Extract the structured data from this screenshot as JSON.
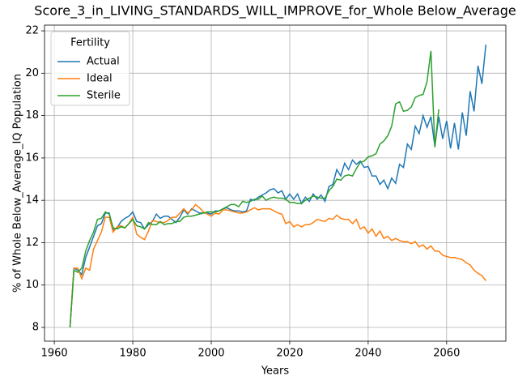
{
  "chart_data": {
    "type": "line",
    "title": "Score_3_in_LIVING_STANDARDS_WILL_IMPROVE_for_Whole Below_Average",
    "xlabel": "Years",
    "ylabel": "% of Whole Below_Average_IQ Population",
    "legend_title": "Fertility",
    "legend": "upper left",
    "grid": true,
    "xlim": [
      1957.5,
      2075.1
    ],
    "ylim": [
      7.35,
      22.27
    ],
    "xticks": [
      1960,
      1980,
      2000,
      2020,
      2040,
      2060
    ],
    "yticks": [
      8,
      10,
      12,
      14,
      16,
      18,
      20,
      22
    ],
    "x": [
      1964,
      1965,
      1966,
      1967,
      1968,
      1969,
      1970,
      1971,
      1972,
      1973,
      1974,
      1975,
      1976,
      1977,
      1978,
      1979,
      1980,
      1981,
      1982,
      1983,
      1984,
      1985,
      1986,
      1987,
      1988,
      1989,
      1990,
      1991,
      1992,
      1993,
      1994,
      1995,
      1996,
      1997,
      1998,
      1999,
      2000,
      2001,
      2002,
      2003,
      2004,
      2005,
      2006,
      2007,
      2008,
      2009,
      2010,
      2011,
      2012,
      2013,
      2014,
      2015,
      2016,
      2017,
      2018,
      2019,
      2020,
      2021,
      2022,
      2023,
      2024,
      2025,
      2026,
      2027,
      2028,
      2029,
      2030,
      2031,
      2032,
      2033,
      2034,
      2035,
      2036,
      2037,
      2038,
      2039,
      2040,
      2041,
      2042,
      2043,
      2044,
      2045,
      2046,
      2047,
      2048,
      2049,
      2050,
      2051,
      2052,
      2053,
      2054,
      2055,
      2056,
      2057,
      2058,
      2059,
      2060,
      2061,
      2062,
      2063,
      2064,
      2065,
      2066,
      2067,
      2068,
      2069,
      2070
    ],
    "series": [
      {
        "name": "Actual",
        "color": "#1f77b4",
        "values": [
          8.0,
          10.8,
          10.7,
          10.5,
          11.3,
          11.8,
          12.3,
          12.8,
          12.9,
          13.4,
          13.4,
          12.6,
          12.7,
          13.0,
          13.15,
          13.25,
          13.45,
          13.0,
          12.95,
          12.65,
          12.85,
          13.0,
          13.35,
          13.15,
          13.25,
          13.25,
          13.1,
          12.95,
          13.2,
          13.55,
          13.35,
          13.6,
          13.5,
          13.4,
          13.4,
          13.4,
          13.35,
          13.5,
          13.5,
          13.6,
          13.65,
          13.55,
          13.5,
          13.5,
          13.45,
          13.5,
          14.05,
          14.0,
          14.15,
          14.25,
          14.35,
          14.5,
          14.55,
          14.35,
          14.45,
          14.05,
          14.3,
          14.05,
          14.3,
          13.85,
          14.15,
          13.95,
          14.3,
          14.05,
          14.25,
          13.95,
          14.65,
          14.75,
          15.45,
          15.15,
          15.75,
          15.45,
          15.9,
          15.7,
          15.85,
          15.55,
          15.6,
          15.15,
          15.15,
          14.75,
          14.95,
          14.55,
          15.05,
          14.8,
          15.7,
          15.55,
          16.65,
          16.4,
          17.5,
          17.15,
          18.0,
          17.45,
          17.95,
          16.55,
          17.95,
          16.9,
          17.75,
          16.45,
          17.65,
          16.4,
          18.15,
          17.05,
          19.15,
          18.2,
          20.35,
          19.5,
          21.35
        ]
      },
      {
        "name": "Ideal",
        "color": "#ff7f0e",
        "values": [
          8.0,
          10.8,
          10.8,
          10.3,
          10.8,
          10.7,
          11.7,
          12.1,
          12.5,
          13.2,
          13.2,
          12.5,
          12.75,
          12.8,
          12.7,
          12.9,
          13.2,
          12.4,
          12.25,
          12.15,
          12.55,
          13.05,
          13.0,
          12.95,
          12.95,
          13.05,
          13.2,
          13.2,
          13.4,
          13.6,
          13.4,
          13.55,
          13.8,
          13.65,
          13.45,
          13.35,
          13.25,
          13.4,
          13.35,
          13.55,
          13.55,
          13.5,
          13.45,
          13.4,
          13.4,
          13.45,
          13.55,
          13.65,
          13.55,
          13.6,
          13.6,
          13.6,
          13.5,
          13.4,
          13.35,
          12.9,
          13.0,
          12.75,
          12.85,
          12.75,
          12.85,
          12.85,
          12.95,
          13.1,
          13.05,
          13.0,
          13.15,
          13.1,
          13.3,
          13.15,
          13.1,
          13.1,
          12.9,
          13.1,
          12.65,
          12.75,
          12.45,
          12.65,
          12.3,
          12.55,
          12.2,
          12.3,
          12.1,
          12.2,
          12.1,
          12.05,
          12.05,
          11.95,
          12.05,
          11.8,
          11.9,
          11.7,
          11.85,
          11.6,
          11.6,
          11.4,
          11.35,
          11.3,
          11.3,
          11.25,
          11.2,
          11.05,
          10.95,
          10.7,
          10.55,
          10.45,
          10.2
        ]
      },
      {
        "name": "Sterile",
        "color": "#2ca02c",
        "values": [
          8.0,
          10.7,
          10.6,
          10.8,
          11.6,
          12.1,
          12.5,
          13.1,
          13.15,
          13.45,
          13.35,
          12.7,
          12.65,
          12.75,
          12.7,
          12.9,
          13.1,
          12.8,
          12.75,
          12.65,
          12.95,
          12.85,
          12.85,
          13.0,
          12.85,
          12.9,
          12.9,
          13.0,
          13.0,
          13.2,
          13.25,
          13.25,
          13.3,
          13.35,
          13.4,
          13.45,
          13.45,
          13.45,
          13.5,
          13.6,
          13.7,
          13.8,
          13.8,
          13.7,
          13.95,
          13.9,
          13.95,
          14.05,
          14.05,
          14.2,
          14.0,
          14.1,
          14.15,
          14.1,
          14.1,
          14.05,
          13.9,
          13.9,
          13.85,
          13.85,
          14.0,
          14.1,
          14.2,
          14.15,
          14.1,
          14.1,
          14.45,
          14.65,
          15.0,
          14.95,
          15.15,
          15.2,
          15.15,
          15.5,
          15.8,
          15.85,
          16.05,
          16.1,
          16.2,
          16.65,
          16.8,
          17.05,
          17.5,
          18.55,
          18.65,
          18.2,
          18.25,
          18.4,
          18.85,
          18.95,
          19.0,
          19.6,
          21.05,
          16.5,
          18.3,
          null,
          null,
          null,
          null,
          null,
          null,
          null,
          null,
          null,
          null,
          null,
          null
        ]
      }
    ]
  }
}
